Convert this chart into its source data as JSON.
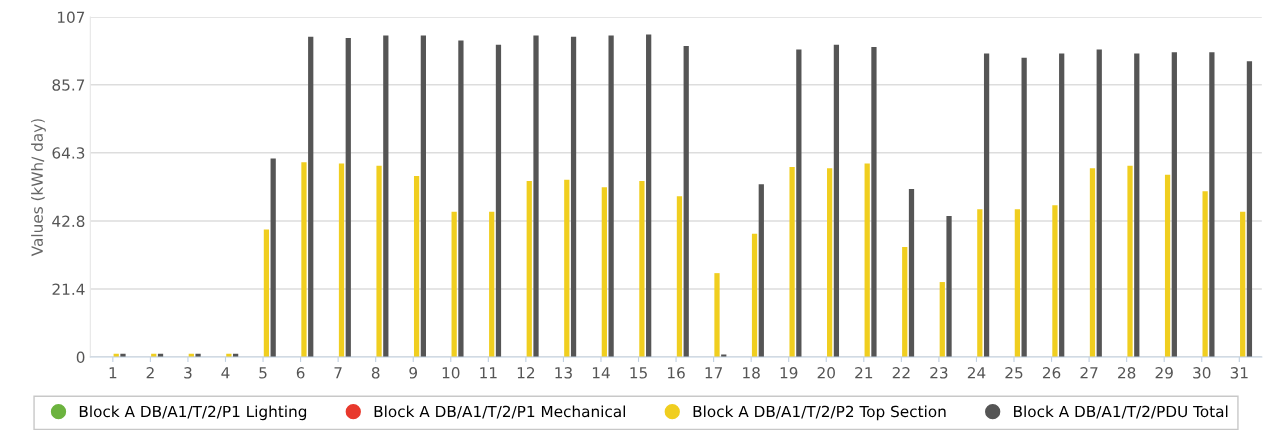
{
  "chart_data": {
    "type": "bar",
    "ylabel": "Values (kWh/ day)",
    "categories": [
      "1",
      "2",
      "3",
      "4",
      "5",
      "6",
      "7",
      "8",
      "9",
      "10",
      "11",
      "12",
      "13",
      "14",
      "15",
      "16",
      "17",
      "18",
      "19",
      "20",
      "21",
      "22",
      "23",
      "24",
      "25",
      "26",
      "27",
      "28",
      "29",
      "30",
      "31"
    ],
    "series": [
      {
        "name": "Block A DB/A1/T/2/P1 Lighting",
        "color": "#6cb33f",
        "values": [
          0,
          0,
          0,
          0,
          0,
          0,
          0,
          0,
          0,
          0,
          0,
          0,
          0,
          0,
          0,
          0,
          0,
          0,
          0,
          0,
          0,
          0,
          0,
          0,
          0,
          0,
          0,
          0,
          0,
          0,
          0
        ]
      },
      {
        "name": "Block A DB/A1/T/2/P1 Mechanical",
        "color": "#e8392d",
        "values": [
          0,
          0,
          0,
          0,
          0,
          0,
          0,
          0,
          0,
          0,
          0,
          0,
          0,
          0,
          0,
          0,
          0,
          0,
          0,
          0,
          0,
          0,
          0,
          0,
          0,
          0,
          0,
          0,
          0,
          0,
          0
        ]
      },
      {
        "name": "Block A DB/A1/T/2/P2 Top Section",
        "color": "#f0ce1f",
        "values": [
          1.0,
          1.0,
          1.0,
          1.0,
          40.1,
          61.3,
          60.9,
          60.2,
          57.0,
          45.7,
          45.7,
          55.4,
          55.8,
          53.4,
          55.4,
          50.6,
          26.4,
          38.8,
          59.8,
          59.4,
          60.9,
          34.6,
          23.6,
          46.5,
          46.5,
          47.8,
          59.4,
          60.2,
          57.4,
          52.2,
          45.7
        ]
      },
      {
        "name": "Block A DB/A1/T/2/PDU Total",
        "color": "#555555",
        "values": [
          1.0,
          1.0,
          1.0,
          1.0,
          62.5,
          100.8,
          100.4,
          101.2,
          101.2,
          99.6,
          98.3,
          101.2,
          100.8,
          101.2,
          101.5,
          97.9,
          0.8,
          54.4,
          96.8,
          98.3,
          97.6,
          52.9,
          44.4,
          95.5,
          94.2,
          95.5,
          96.8,
          95.5,
          95.9,
          95.9,
          93.1
        ]
      }
    ],
    "ylim": [
      0,
      107
    ],
    "yticks": [
      0,
      21.4,
      42.8,
      64.3,
      85.7,
      107
    ],
    "grid": "y",
    "legend": "bottom"
  }
}
